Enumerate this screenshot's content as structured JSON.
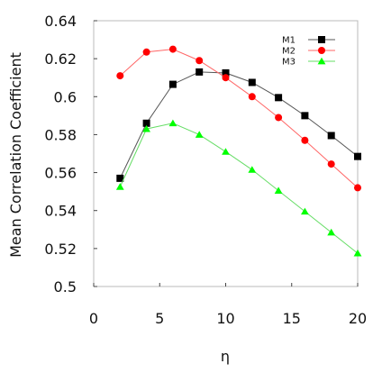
{
  "chart_data": {
    "type": "line",
    "title": "",
    "xlabel": "η",
    "ylabel": "Mean Correlation Coefficient",
    "xlim": [
      0,
      20
    ],
    "ylim": [
      0.5,
      0.64
    ],
    "xticks": [
      0,
      5,
      10,
      15,
      20
    ],
    "xtick_labels": [
      "0",
      "5",
      "10",
      "15",
      "20"
    ],
    "yticks": [
      0.5,
      0.52,
      0.54,
      0.56,
      0.58,
      0.6,
      0.62,
      0.64
    ],
    "ytick_labels": [
      "0.5",
      "0.52",
      "0.54",
      "0.56",
      "0.58",
      "0.6",
      "0.62",
      "0.64"
    ],
    "grid": false,
    "legend_position": "top-right",
    "x": [
      2,
      4,
      6,
      8,
      10,
      12,
      14,
      16,
      18,
      20
    ],
    "series": [
      {
        "name": "M1",
        "color": "#000000",
        "line_color": "#555555",
        "marker": "square",
        "values": [
          0.557,
          0.586,
          0.6065,
          0.613,
          0.6125,
          0.6075,
          0.5995,
          0.59,
          0.5795,
          0.5685
        ]
      },
      {
        "name": "M2",
        "color": "#ff0000",
        "line_color": "#ff6666",
        "marker": "circle",
        "values": [
          0.611,
          0.6235,
          0.625,
          0.619,
          0.61,
          0.6,
          0.589,
          0.577,
          0.5645,
          0.552
        ]
      },
      {
        "name": "M3",
        "color": "#00ff00",
        "line_color": "#66dd66",
        "marker": "triangle",
        "values": [
          0.5525,
          0.583,
          0.586,
          0.58,
          0.571,
          0.5615,
          0.5505,
          0.5395,
          0.5285,
          0.5175
        ]
      }
    ]
  }
}
